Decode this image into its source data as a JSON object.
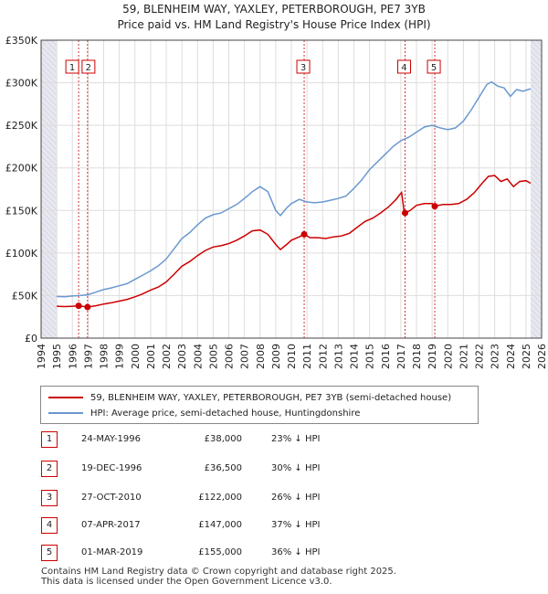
{
  "chart_data": {
    "type": "line",
    "title": "59, BLENHEIM WAY, YAXLEY, PETERBOROUGH, PE7 3YB",
    "subtitle": "Price paid vs. HM Land Registry's House Price Index (HPI)",
    "ylim": [
      0,
      350000
    ],
    "xlim": [
      1994,
      2026
    ],
    "y_ticks": [
      0,
      50000,
      100000,
      150000,
      200000,
      250000,
      300000,
      350000
    ],
    "y_tick_labels": [
      "£0",
      "£50K",
      "£100K",
      "£150K",
      "£200K",
      "£250K",
      "£300K",
      "£350K"
    ],
    "x_ticks": [
      1994,
      1995,
      1996,
      1997,
      1998,
      1999,
      2000,
      2001,
      2002,
      2003,
      2004,
      2005,
      2006,
      2007,
      2008,
      2009,
      2010,
      2011,
      2012,
      2013,
      2014,
      2015,
      2016,
      2017,
      2018,
      2019,
      2020,
      2021,
      2022,
      2023,
      2024,
      2025,
      2026
    ],
    "x_tick_labels": [
      "1994",
      "1995",
      "1996",
      "1997",
      "1998",
      "1999",
      "2000",
      "2001",
      "2002",
      "2003",
      "2004",
      "2005",
      "2006",
      "2007",
      "2008",
      "2009",
      "2010",
      "2011",
      "2012",
      "2013",
      "2014",
      "2015",
      "2016",
      "2017",
      "2018",
      "2019",
      "2020",
      "2021",
      "2022",
      "2023",
      "2024",
      "2025",
      "2026"
    ],
    "series": [
      {
        "name": "59, BLENHEIM WAY, YAXLEY, PETERBOROUGH, PE7 3YB (semi-detached house)",
        "color": "#cc0000",
        "points": [
          [
            1995.0,
            37500
          ],
          [
            1995.5,
            37000
          ],
          [
            1996.0,
            37500
          ],
          [
            1996.4,
            38000
          ],
          [
            1996.97,
            36500
          ],
          [
            1997.5,
            38000
          ],
          [
            1998.0,
            40000
          ],
          [
            1998.5,
            41500
          ],
          [
            1999.0,
            43500
          ],
          [
            1999.5,
            45500
          ],
          [
            2000.0,
            48500
          ],
          [
            2000.5,
            52000
          ],
          [
            2001.0,
            56500
          ],
          [
            2001.5,
            60000
          ],
          [
            2002.0,
            66000
          ],
          [
            2002.5,
            75000
          ],
          [
            2003.0,
            84500
          ],
          [
            2003.5,
            90000
          ],
          [
            2004.0,
            97000
          ],
          [
            2004.5,
            103000
          ],
          [
            2005.0,
            107000
          ],
          [
            2005.5,
            108500
          ],
          [
            2006.0,
            111000
          ],
          [
            2006.5,
            115000
          ],
          [
            2007.0,
            120000
          ],
          [
            2007.5,
            126000
          ],
          [
            2008.0,
            127000
          ],
          [
            2008.5,
            122000
          ],
          [
            2009.0,
            110000
          ],
          [
            2009.3,
            104000
          ],
          [
            2009.7,
            110000
          ],
          [
            2010.0,
            115000
          ],
          [
            2010.5,
            119000
          ],
          [
            2010.82,
            122000
          ],
          [
            2011.2,
            118000
          ],
          [
            2011.7,
            118000
          ],
          [
            2012.2,
            117000
          ],
          [
            2012.7,
            119000
          ],
          [
            2013.2,
            120000
          ],
          [
            2013.7,
            123000
          ],
          [
            2014.2,
            130000
          ],
          [
            2014.7,
            137000
          ],
          [
            2015.2,
            141000
          ],
          [
            2015.7,
            147000
          ],
          [
            2016.2,
            154000
          ],
          [
            2016.7,
            163000
          ],
          [
            2016.9,
            168000
          ],
          [
            2017.05,
            171000
          ],
          [
            2017.2,
            150000
          ],
          [
            2017.27,
            147000
          ],
          [
            2017.6,
            150000
          ],
          [
            2018.0,
            156000
          ],
          [
            2018.5,
            158000
          ],
          [
            2019.0,
            158000
          ],
          [
            2019.17,
            155000
          ],
          [
            2019.7,
            157000
          ],
          [
            2020.2,
            157000
          ],
          [
            2020.7,
            158000
          ],
          [
            2021.2,
            163000
          ],
          [
            2021.7,
            171000
          ],
          [
            2022.2,
            182000
          ],
          [
            2022.6,
            190000
          ],
          [
            2023.0,
            191000
          ],
          [
            2023.4,
            184000
          ],
          [
            2023.8,
            187000
          ],
          [
            2024.2,
            178000
          ],
          [
            2024.6,
            184000
          ],
          [
            2025.0,
            185000
          ],
          [
            2025.3,
            182000
          ]
        ]
      },
      {
        "name": "HPI: Average price, semi-detached house, Huntingdonshire",
        "color": "#6a98cf",
        "points": [
          [
            1995.0,
            49000
          ],
          [
            1995.5,
            48500
          ],
          [
            1996.0,
            49500
          ],
          [
            1996.5,
            50000
          ],
          [
            1997.0,
            51000
          ],
          [
            1997.5,
            54000
          ],
          [
            1998.0,
            57000
          ],
          [
            1998.5,
            59000
          ],
          [
            1999.0,
            61500
          ],
          [
            1999.5,
            64000
          ],
          [
            2000.0,
            69000
          ],
          [
            2000.5,
            74000
          ],
          [
            2001.0,
            79000
          ],
          [
            2001.5,
            85000
          ],
          [
            2002.0,
            93000
          ],
          [
            2002.5,
            105000
          ],
          [
            2003.0,
            117000
          ],
          [
            2003.5,
            124000
          ],
          [
            2004.0,
            133000
          ],
          [
            2004.5,
            141000
          ],
          [
            2005.0,
            145000
          ],
          [
            2005.5,
            147000
          ],
          [
            2006.0,
            152000
          ],
          [
            2006.5,
            157000
          ],
          [
            2007.0,
            164000
          ],
          [
            2007.5,
            172000
          ],
          [
            2008.0,
            178000
          ],
          [
            2008.5,
            172000
          ],
          [
            2009.0,
            150000
          ],
          [
            2009.3,
            144000
          ],
          [
            2009.7,
            153000
          ],
          [
            2010.0,
            158000
          ],
          [
            2010.5,
            163000
          ],
          [
            2011.0,
            160000
          ],
          [
            2011.5,
            159000
          ],
          [
            2012.0,
            160000
          ],
          [
            2012.5,
            162000
          ],
          [
            2013.0,
            164000
          ],
          [
            2013.5,
            167000
          ],
          [
            2014.0,
            176000
          ],
          [
            2014.5,
            186000
          ],
          [
            2015.0,
            198000
          ],
          [
            2015.5,
            207000
          ],
          [
            2016.0,
            216000
          ],
          [
            2016.5,
            225000
          ],
          [
            2017.0,
            232000
          ],
          [
            2017.5,
            236000
          ],
          [
            2018.0,
            242000
          ],
          [
            2018.5,
            248000
          ],
          [
            2019.0,
            250000
          ],
          [
            2019.5,
            247000
          ],
          [
            2020.0,
            245000
          ],
          [
            2020.5,
            247000
          ],
          [
            2021.0,
            255000
          ],
          [
            2021.5,
            268000
          ],
          [
            2022.0,
            283000
          ],
          [
            2022.5,
            298000
          ],
          [
            2022.8,
            301000
          ],
          [
            2023.2,
            296000
          ],
          [
            2023.6,
            294000
          ],
          [
            2024.0,
            284000
          ],
          [
            2024.4,
            292000
          ],
          [
            2024.8,
            290000
          ],
          [
            2025.3,
            293000
          ]
        ]
      }
    ],
    "sales": [
      {
        "label": "1",
        "date": "24-MAY-1996",
        "x": 1996.4,
        "price": 38000,
        "price_label": "£38,000",
        "hpi": "23% ↓ HPI"
      },
      {
        "label": "2",
        "date": "19-DEC-1996",
        "x": 1996.97,
        "price": 36500,
        "price_label": "£36,500",
        "hpi": "30% ↓ HPI"
      },
      {
        "label": "3",
        "date": "27-OCT-2010",
        "x": 2010.82,
        "price": 122000,
        "price_label": "£122,000",
        "hpi": "26% ↓ HPI"
      },
      {
        "label": "4",
        "date": "07-APR-2017",
        "x": 2017.27,
        "price": 147000,
        "price_label": "£147,000",
        "hpi": "37% ↓ HPI"
      },
      {
        "label": "5",
        "date": "01-MAR-2019",
        "x": 2019.17,
        "price": 155000,
        "price_label": "£155,000",
        "hpi": "36% ↓ HPI"
      }
    ],
    "shaded_ranges": [
      [
        1994,
        1995
      ],
      [
        2025.3,
        2026
      ]
    ]
  },
  "legend": {
    "property": "59, BLENHEIM WAY, YAXLEY, PETERBOROUGH, PE7 3YB (semi-detached house)",
    "hpi": "HPI: Average price, semi-detached house, Huntingdonshire"
  },
  "footer": {
    "line1": "Contains HM Land Registry data © Crown copyright and database right 2025.",
    "line2": "This data is licensed under the Open Government Licence v3.0."
  },
  "colors": {
    "property": "#cc0000",
    "hpi": "#6a98cf",
    "grid": "#dddddd",
    "shade": "#e8e8f0"
  }
}
